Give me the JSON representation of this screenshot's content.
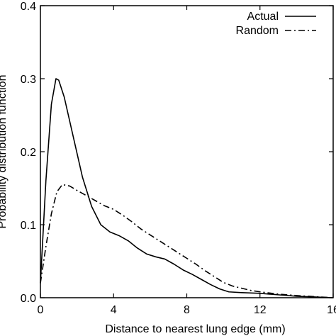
{
  "chart_data": {
    "type": "line",
    "xlabel": "Distance to nearest lung edge (mm)",
    "ylabel": "Probability distribution function",
    "xlim": [
      0,
      16
    ],
    "ylim": [
      0,
      0.4
    ],
    "x_ticks": [
      0,
      4,
      8,
      12,
      16
    ],
    "x_tick_labels": [
      "0",
      "4",
      "8",
      "12",
      "16"
    ],
    "y_ticks": [
      0,
      0.1,
      0.2,
      0.3,
      0.4
    ],
    "y_tick_labels": [
      "0.0",
      "0.1",
      "0.2",
      "0.3",
      "0.4"
    ],
    "grid": false,
    "legend_position": "top-right",
    "series": [
      {
        "name": "Actual",
        "line_style": "solid",
        "color": "#000000",
        "x": [
          0,
          0.3,
          0.6,
          0.85,
          1.0,
          1.3,
          1.8,
          2.3,
          2.8,
          3.3,
          3.8,
          4.3,
          4.8,
          5.3,
          5.8,
          6.3,
          6.8,
          7.3,
          7.8,
          8.3,
          8.8,
          9.3,
          9.8,
          10.3,
          11.0,
          12.0,
          13.0,
          14.0,
          15.0,
          16.0
        ],
        "y": [
          0.02,
          0.16,
          0.265,
          0.3,
          0.298,
          0.275,
          0.22,
          0.165,
          0.125,
          0.1,
          0.09,
          0.085,
          0.078,
          0.068,
          0.06,
          0.056,
          0.053,
          0.046,
          0.038,
          0.032,
          0.025,
          0.018,
          0.012,
          0.008,
          0.007,
          0.006,
          0.004,
          0.002,
          0.001,
          0.0
        ]
      },
      {
        "name": "Random",
        "line_style": "dash-dot",
        "color": "#000000",
        "x": [
          0,
          0.3,
          0.6,
          0.9,
          1.2,
          1.6,
          2.0,
          2.5,
          3.0,
          3.5,
          4.0,
          4.5,
          5.0,
          5.5,
          6.0,
          6.5,
          7.0,
          7.5,
          8.0,
          8.5,
          9.0,
          9.5,
          10.0,
          10.5,
          11.0,
          11.5,
          12.0,
          13.0,
          14.0,
          15.0,
          16.0
        ],
        "y": [
          0.02,
          0.07,
          0.115,
          0.145,
          0.155,
          0.153,
          0.147,
          0.14,
          0.133,
          0.126,
          0.121,
          0.113,
          0.104,
          0.094,
          0.086,
          0.078,
          0.07,
          0.062,
          0.054,
          0.046,
          0.037,
          0.029,
          0.021,
          0.016,
          0.013,
          0.01,
          0.008,
          0.005,
          0.003,
          0.0015,
          0.0
        ]
      }
    ]
  }
}
